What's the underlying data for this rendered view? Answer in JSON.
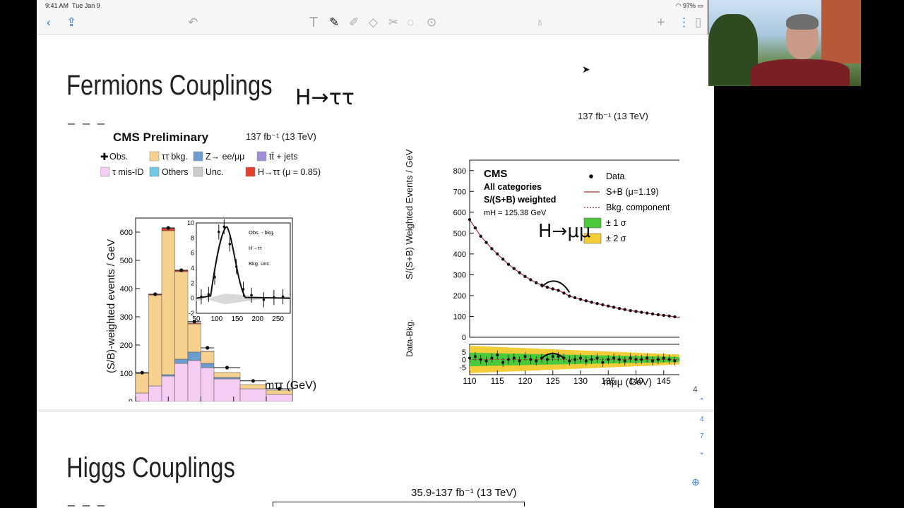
{
  "status_bar": {
    "time": "9:41 AM",
    "date": "Tue Jan 9",
    "battery": "97%"
  },
  "toolbar": {
    "icons": [
      "back-icon",
      "share-icon",
      "undo-icon",
      "text-tool-icon",
      "pen-icon",
      "highlighter-icon",
      "eraser-icon",
      "lasso-icon",
      "shapes-icon",
      "zoom-icon",
      "microphone-icon",
      "add-icon",
      "more-icon",
      "pages-icon"
    ]
  },
  "slide": {
    "title1": "Fermions Couplings",
    "title2": "Higgs Couplings",
    "dash": "_ _ _",
    "handwriting1": "H→ττ",
    "handwriting2": "H→μμ",
    "page_number": "4",
    "sidebar_nums": [
      "4",
      "7"
    ],
    "bottom_lumi": "35.9-137 fb⁻¹ (13 TeV)"
  },
  "chart_data": [
    {
      "type": "bar",
      "title": "CMS Preliminary",
      "lumi": "137 fb⁻¹ (13 TeV)",
      "xlabel": "mττ (GeV)",
      "ylabel": "(S/B)-weighted events / GeV",
      "xlim": [
        50,
        290
      ],
      "ylim": [
        0,
        650
      ],
      "xticks": [
        "50",
        "100",
        "150",
        "200",
        "250"
      ],
      "yticks": [
        "0",
        "100",
        "200",
        "300",
        "400",
        "500",
        "600"
      ],
      "legend": [
        "Obs.",
        "ττ bkg.",
        "Z→ ee/μμ",
        "tt̄ + jets",
        "τ mis-ID",
        "Others",
        "Unc.",
        "H→ττ (μ = 0.85)"
      ],
      "bin_edges": [
        50,
        70,
        90,
        110,
        130,
        150,
        170,
        210,
        250,
        290
      ],
      "series": [
        {
          "name": "τ mis-ID",
          "color": "#f5cdf2",
          "values": [
            30,
            55,
            90,
            135,
            145,
            120,
            80,
            45,
            25
          ]
        },
        {
          "name": "Z→ ee/μμ",
          "color": "#6f9ccf",
          "values": [
            0,
            0,
            5,
            15,
            30,
            15,
            5,
            0,
            0
          ]
        },
        {
          "name": "ττ bkg.",
          "color": "#f6d08f",
          "values": [
            70,
            322,
            510,
            310,
            100,
            42,
            18,
            15,
            15
          ]
        },
        {
          "name": "H→ττ (μ = 0.85)",
          "color": "#e1402f",
          "values": [
            2,
            3,
            8,
            5,
            3,
            1,
            0,
            0,
            0
          ]
        }
      ],
      "observed": [
        102,
        380,
        615,
        465,
        283,
        190,
        120,
        73,
        45
      ],
      "inset": {
        "legend": [
          "Obs. - bkg.",
          "H→ττ",
          "Bkg. unc."
        ],
        "xticks": [
          "50",
          "100",
          "150",
          "200",
          "250"
        ],
        "yticks": [
          "-2",
          "0",
          "2",
          "4",
          "6",
          "8",
          "10"
        ]
      }
    },
    {
      "type": "scatter",
      "lumi": "137 fb⁻¹ (13 TeV)",
      "labels": [
        "CMS",
        "All categories",
        "S/(S+B) weighted",
        "mH = 125.38 GeV"
      ],
      "xlabel": "mμμ (GeV)",
      "ylabel": "S/(S+B) Weighted Events / GeV",
      "ylabel_ratio": "Data-Bkg.",
      "xlim": [
        110,
        150
      ],
      "ylim": [
        0,
        850
      ],
      "ylim_ratio": [
        -10,
        10
      ],
      "xticks": [
        "110",
        "115",
        "120",
        "125",
        "130",
        "135",
        "140",
        "145",
        "150"
      ],
      "yticks": [
        "0",
        "100",
        "200",
        "300",
        "400",
        "500",
        "600",
        "700",
        "800"
      ],
      "yticks_ratio": [
        "-5",
        "0",
        "5"
      ],
      "legend": [
        "Data",
        "S+B (μ=1.19)",
        "Bkg. component",
        "± 1 σ",
        "± 2 σ"
      ],
      "x": [
        110,
        111,
        112,
        113,
        114,
        115,
        116,
        117,
        118,
        119,
        120,
        121,
        122,
        123,
        124,
        125,
        126,
        127,
        128,
        129,
        130,
        131,
        132,
        133,
        134,
        135,
        136,
        137,
        138,
        139,
        140,
        141,
        142,
        143,
        144,
        145,
        146,
        147,
        148,
        149,
        150
      ],
      "y": [
        565,
        525,
        485,
        455,
        425,
        400,
        375,
        350,
        330,
        310,
        292,
        276,
        262,
        250,
        240,
        232,
        225,
        212,
        198,
        190,
        182,
        175,
        168,
        162,
        156,
        150,
        144,
        138,
        133,
        128,
        124,
        120,
        116,
        112,
        108,
        105,
        102,
        98,
        95,
        92,
        88
      ],
      "ratio": [
        1,
        2,
        0,
        -1,
        1,
        3,
        -2,
        0,
        1,
        -1,
        2,
        0,
        -1,
        1,
        0,
        2,
        2,
        1,
        -1,
        0,
        1,
        -1,
        0,
        1,
        -2,
        0,
        1,
        0,
        -1,
        1,
        0,
        0,
        1,
        -1,
        0,
        1,
        0,
        -1,
        0,
        2,
        0
      ]
    }
  ]
}
